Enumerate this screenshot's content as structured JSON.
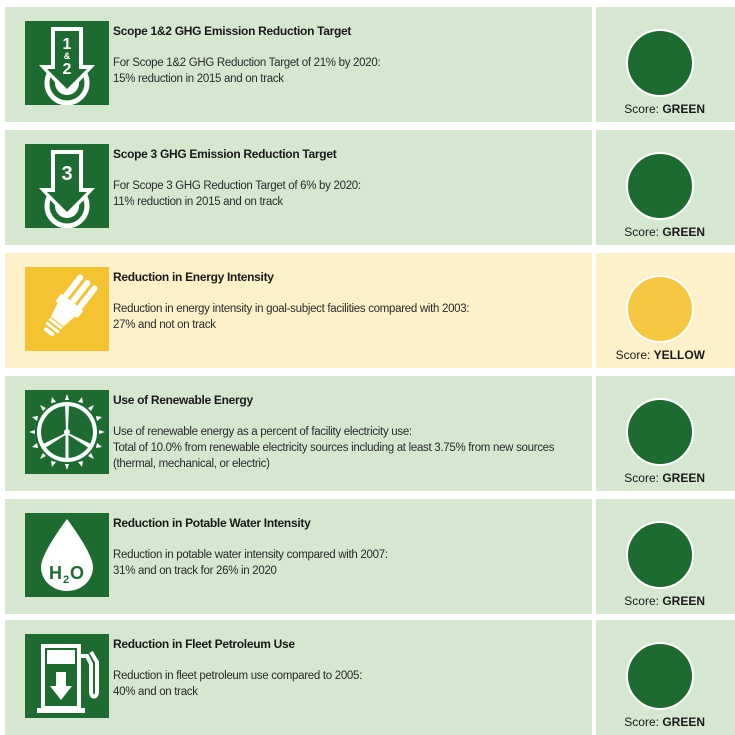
{
  "colors": {
    "green_bg": "#d5e8cf",
    "yellow_bg": "#fdf1c9",
    "green_dark": "#1e6b31",
    "yellow_icon": "#f5c232",
    "score_green": "#1e6b31",
    "score_yellow": "#f6c842"
  },
  "rows": [
    {
      "icon": "scope-1-2-target-icon",
      "icon_text_top": "1",
      "icon_text_mid": "&",
      "icon_text_bottom": "2",
      "title": "Scope 1&2 GHG Emission Reduction Target",
      "desc": [
        "For Scope 1&2 GHG Reduction Target of 21% by 2020:",
        "15% reduction in 2015 and on track"
      ],
      "score_label": "Score:",
      "score_value": "GREEN"
    },
    {
      "icon": "scope-3-target-icon",
      "icon_text_top": "3",
      "title": "Scope 3 GHG Emission Reduction Target",
      "desc": [
        "For Scope 3 GHG Reduction Target of 6% by 2020:",
        "11% reduction in 2015 and on track"
      ],
      "score_label": "Score:",
      "score_value": "GREEN"
    },
    {
      "icon": "light-bulb-icon",
      "title": "Reduction in Energy Intensity",
      "desc": [
        "Reduction in energy intensity in goal-subject facilities compared with 2003:",
        "27% and not on track"
      ],
      "score_label": "Score:",
      "score_value": "YELLOW"
    },
    {
      "icon": "wind-turbine-icon",
      "title": "Use of Renewable Energy",
      "desc": [
        "Use of renewable energy as a percent of facility electricity use:",
        "Total of 10.0% from renewable electricity sources including at least 3.75% from new sources",
        "(thermal, mechanical, or electric)"
      ],
      "score_label": "Score:",
      "score_value": "GREEN"
    },
    {
      "icon": "water-drop-icon",
      "icon_text": "H",
      "icon_sub": "2",
      "icon_text2": "O",
      "title": "Reduction in Potable Water Intensity",
      "desc": [
        "Reduction in potable water intensity compared with 2007:",
        "31% and on track for 26% in 2020"
      ],
      "score_label": "Score:",
      "score_value": "GREEN"
    },
    {
      "icon": "fuel-pump-icon",
      "title": "Reduction in Fleet Petroleum Use",
      "desc": [
        "Reduction in fleet petroleum use compared to 2005:",
        "40% and on track"
      ],
      "score_label": "Score:",
      "score_value": "GREEN"
    }
  ]
}
